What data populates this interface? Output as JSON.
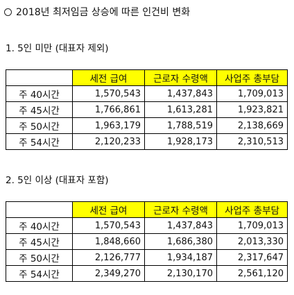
{
  "title": "2018년 최저임금 상승에 따른 인건비 변화",
  "sections": [
    {
      "heading": "1. 5인 미만 (대표자 제외)",
      "columns": [
        "",
        "세전 급여",
        "근로자 수령액",
        "사업주 총부담"
      ],
      "rows": [
        [
          "주 40시간",
          "1,570,543",
          "1,437,843",
          "1,709,013"
        ],
        [
          "주 45시간",
          "1,766,861",
          "1,613,281",
          "1,923,821"
        ],
        [
          "주 50시간",
          "1,963,179",
          "1,788,519",
          "2,138,669"
        ],
        [
          "주 54시간",
          "2,120,233",
          "1,928,173",
          "2,310,513"
        ]
      ]
    },
    {
      "heading": "2. 5인 이상 (대표자 포함)",
      "columns": [
        "",
        "세전 급여",
        "근로자 수령액",
        "사업주 총부담"
      ],
      "rows": [
        [
          "주 40시간",
          "1,570,543",
          "1,437,843",
          "1,709,013"
        ],
        [
          "주 45시간",
          "1,848,660",
          "1,686,380",
          "2,013,330"
        ],
        [
          "주 50시간",
          "2,126,777",
          "1,934,187",
          "2,317,647"
        ],
        [
          "주 54시간",
          "2,349,270",
          "2,130,170",
          "2,561,120"
        ]
      ]
    }
  ],
  "colors": {
    "header_bg": "#ffff00",
    "border": "#000000"
  }
}
